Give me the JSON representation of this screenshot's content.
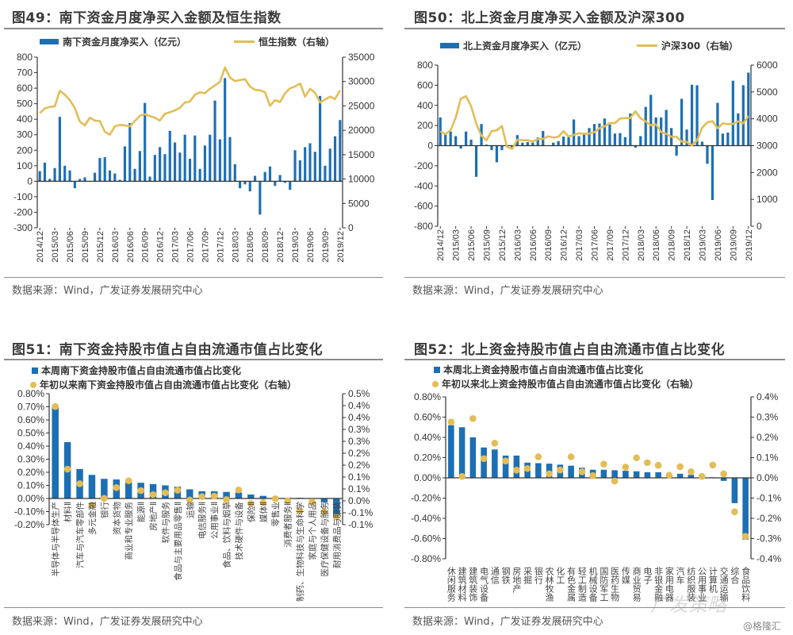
{
  "panels": [
    {
      "title": "图49：南下资金月度净买入金额及恒生指数",
      "source": "数据来源：Wind，广发证券发展研究中心"
    },
    {
      "title": "图50：北上资金月度净买入金额及沪深300",
      "source": "数据来源：Wind，广发证券发展研究中心"
    },
    {
      "title": "图51：南下资金持股市值占自由流通市值占比变化",
      "source": "数据来源：Wind，广发证券发展研究中心"
    },
    {
      "title": "图52：北上资金持股市值占自由流通市值占比变化",
      "source": "数据来源：Wind，广发证券发展研究中心"
    }
  ],
  "watermark": "广发策略",
  "credit": "@格隆汇",
  "colors": {
    "bar": "#1d6fb3",
    "line": "#e3bd55",
    "axis": "#333333"
  },
  "chart_data": [
    {
      "type": "bar+line",
      "title": "图49：南下资金月度净买入金额及恒生指数",
      "legend": [
        "南下资金月度净买入（亿元）",
        "恒生指数（右轴）"
      ],
      "x_tick_labels": [
        "2014/12",
        "2015/03",
        "2015/06",
        "2015/09",
        "2015/12",
        "2016/03",
        "2016/06",
        "2016/09",
        "2016/12",
        "2017/03",
        "2017/06",
        "2017/09",
        "2017/12",
        "2018/03",
        "2018/06",
        "2018/09",
        "2018/12",
        "2019/03",
        "2019/06",
        "2019/09",
        "2019/12"
      ],
      "x_tick_every": 3,
      "ylim_left": [
        -300,
        800
      ],
      "ylim_right": [
        0,
        35000
      ],
      "yticks_left": [
        "800",
        "700",
        "600",
        "500",
        "400",
        "300",
        "200",
        "100",
        "0",
        "-100",
        "-200",
        "-300"
      ],
      "yticks_right": [
        "35000",
        "30000",
        "25000",
        "20000",
        "15000",
        "10000",
        "5000",
        "0"
      ],
      "right_axis_baseline": 10000,
      "bars": [
        65,
        120,
        15,
        85,
        415,
        100,
        70,
        -45,
        15,
        25,
        0,
        55,
        150,
        155,
        70,
        50,
        10,
        225,
        375,
        80,
        195,
        505,
        30,
        170,
        220,
        175,
        325,
        250,
        185,
        300,
        145,
        295,
        80,
        230,
        300,
        520,
        270,
        665,
        285,
        110,
        -45,
        -20,
        -65,
        35,
        -215,
        60,
        95,
        -30,
        40,
        -10,
        -55,
        200,
        135,
        220,
        245,
        190,
        550,
        100,
        210,
        290,
        395
      ],
      "line": [
        23500,
        24500,
        24800,
        24900,
        28100,
        27300,
        26200,
        24600,
        21800,
        21000,
        22600,
        22000,
        21900,
        19700,
        19100,
        20800,
        21100,
        21000,
        20800,
        21900,
        23000,
        23300,
        22900,
        22600,
        22000,
        23400,
        23700,
        24100,
        24600,
        25700,
        25900,
        27300,
        27800,
        27600,
        28500,
        29200,
        29900,
        32900,
        30800,
        30100,
        30300,
        30500,
        29000,
        28300,
        28200,
        27800,
        25000,
        26200,
        25800,
        27600,
        28600,
        29000,
        29600,
        26900,
        28500,
        27700,
        25700,
        26300,
        26900,
        26400,
        28200
      ]
    },
    {
      "type": "bar+line",
      "title": "图50：北上资金月度净买入金额及沪深300",
      "legend": [
        "北上资金月度净买入（亿元）",
        "沪深300（右轴）"
      ],
      "x_tick_labels": [
        "2014/12",
        "2015/03",
        "2015/06",
        "2015/09",
        "2015/12",
        "2016/03",
        "2016/06",
        "2016/09",
        "2016/12",
        "2017/03",
        "2017/06",
        "2017/09",
        "2017/12",
        "2018/03",
        "2018/06",
        "2018/09",
        "2018/12",
        "2019/03",
        "2019/06",
        "2019/09",
        "2019/12"
      ],
      "x_tick_every": 3,
      "ylim_left": [
        -800,
        800
      ],
      "ylim_right": [
        0,
        6000
      ],
      "yticks_left": [
        "800",
        "600",
        "400",
        "200",
        "0",
        "-200",
        "-400",
        "-600",
        "-800"
      ],
      "yticks_right": [
        "6000",
        "5000",
        "4000",
        "3000",
        "2000",
        "1000",
        "0"
      ],
      "bars": [
        280,
        110,
        140,
        95,
        -30,
        140,
        60,
        -310,
        215,
        10,
        -45,
        -165,
        -45,
        0,
        -20,
        105,
        30,
        35,
        30,
        80,
        145,
        0,
        30,
        45,
        90,
        100,
        260,
        95,
        110,
        175,
        215,
        220,
        270,
        210,
        120,
        125,
        85,
        320,
        -20,
        95,
        385,
        505,
        280,
        280,
        355,
        175,
        -100,
        465,
        160,
        605,
        600,
        40,
        -180,
        -540,
        425,
        120,
        130,
        645,
        320,
        600,
        725
      ],
      "line": [
        3530,
        3430,
        3570,
        4050,
        4750,
        4840,
        4470,
        3820,
        3370,
        3200,
        3540,
        3570,
        3730,
        2950,
        2880,
        3220,
        3200,
        3200,
        3150,
        3240,
        3250,
        3350,
        3300,
        3330,
        3540,
        3340,
        3400,
        3460,
        3440,
        3450,
        3500,
        3650,
        3720,
        3840,
        3840,
        4010,
        4030,
        4030,
        4280,
        4020,
        3900,
        3760,
        3790,
        3510,
        3440,
        3330,
        3330,
        3150,
        3140,
        3010,
        3200,
        3670,
        3870,
        3910,
        3650,
        3830,
        3800,
        3810,
        3900,
        3830,
        4100
      ]
    },
    {
      "type": "bar+scatter",
      "title": "图51：南下资金持股市值占自由流通市值占比变化",
      "legend": [
        "本周南下资金持股市值占自由流通市值占比变化",
        "年初以来南下资金持股市值占自由流通市值占比变化（右轴）"
      ],
      "categories": [
        "半导体与半导体生产",
        "材料Ⅱ",
        "汽车与汽车零部件",
        "多元金融",
        "银行",
        "资本货物",
        "商业和专业服务",
        "能源Ⅱ",
        "房地产Ⅱ",
        "软件与服务",
        "食品与主要用品零售Ⅱ",
        "运输",
        "电信服务Ⅱ",
        "公用事业Ⅱ",
        "食品、饮料与烟草",
        "技术硬件与设备",
        "保险Ⅱ",
        "媒体Ⅱ",
        "零售业",
        "消费者服务Ⅱ",
        "制药、生物科技与生命科学",
        "家庭与个人用品",
        "医疗保健设备与服务",
        "耐用消费品与服装"
      ],
      "ylim_left": [
        -0.2,
        0.8
      ],
      "ylim_right": [
        -0.111,
        0.5
      ],
      "yticks_left": [
        "0.80%",
        "0.70%",
        "0.60%",
        "0.50%",
        "0.40%",
        "0.30%",
        "0.20%",
        "0.10%",
        "0.00%",
        "-0.10%",
        "-0.20%"
      ],
      "yticks_right": [
        "0.5%",
        "0.4%",
        "0.4%",
        "0.3%",
        "0.3%",
        "0.2%",
        "0.2%",
        "0.1%",
        "0.1%",
        "0.0%",
        "-0.1%",
        "-0.1%"
      ],
      "unit": "%",
      "bars": [
        0.7,
        0.43,
        0.225,
        0.18,
        0.15,
        0.145,
        0.125,
        0.12,
        0.11,
        0.1,
        0.09,
        0.07,
        0.055,
        0.055,
        0.05,
        0.045,
        0.03,
        0.02,
        0.01,
        0.005,
        0.005,
        0.0,
        -0.03,
        -0.13
      ],
      "dots": [
        0.44,
        0.148,
        0.08,
        -0.02,
        0.012,
        0.062,
        0.094,
        0.048,
        0.029,
        0.038,
        0.05,
        0.004,
        0.02,
        0.022,
        0.006,
        0.051,
        -0.012,
        -0.008,
        0.01,
        0.001,
        -0.046,
        -0.005,
        -0.05,
        -0.075
      ]
    },
    {
      "type": "bar+scatter",
      "title": "图52：北上资金持股市值占自由流通市值占比变化",
      "legend": [
        "本周北上资金持股市值占自由流通市值占比变化",
        "年初以来北上资金持股市值占自由流通市值占比变化（右轴）"
      ],
      "categories": [
        "休闲服务",
        "建筑材料",
        "建筑装饰",
        "电气设备",
        "通信",
        "钢铁",
        "房地产",
        "采掘",
        "银行",
        "农林牧渔",
        "化工",
        "有色金属",
        "轻工制造",
        "机械设备",
        "国防军工",
        "医药生物",
        "传媒",
        "商业贸易",
        "电子",
        "非银金融",
        "家用电器",
        "汽车",
        "纺织服装",
        "公用事业",
        "计算机",
        "交通运输",
        "综合",
        "食品饮料"
      ],
      "ylim_left": [
        -0.8,
        0.8
      ],
      "ylim_right": [
        -0.4,
        0.4
      ],
      "yticks_left": [
        "0.80%",
        "0.60%",
        "0.40%",
        "0.20%",
        "0.00%",
        "-0.20%",
        "-0.40%",
        "-0.60%",
        "-0.80%"
      ],
      "yticks_right": [
        "0.4%",
        "0.3%",
        "0.2%",
        "0.1%",
        "0.0%",
        "-0.1%",
        "-0.2%",
        "-0.3%",
        "-0.4%"
      ],
      "unit": "%",
      "bars": [
        0.52,
        0.5,
        0.4,
        0.3,
        0.28,
        0.22,
        0.22,
        0.15,
        0.145,
        0.14,
        0.13,
        0.12,
        0.1,
        0.08,
        0.08,
        0.075,
        0.07,
        0.065,
        0.055,
        0.055,
        0.02,
        0.04,
        0.03,
        0.0,
        0.005,
        -0.03,
        -0.25,
        -0.61
      ],
      "dots": [
        0.276,
        0.007,
        0.293,
        0.095,
        0.171,
        0.083,
        0.038,
        0.046,
        0.104,
        0.02,
        0.039,
        0.104,
        0.03,
        0.011,
        0.068,
        -0.016,
        0.053,
        0.099,
        0.075,
        0.062,
        0.013,
        0.055,
        0.03,
        0.007,
        0.063,
        0.02,
        -0.168,
        -0.289
      ]
    }
  ]
}
